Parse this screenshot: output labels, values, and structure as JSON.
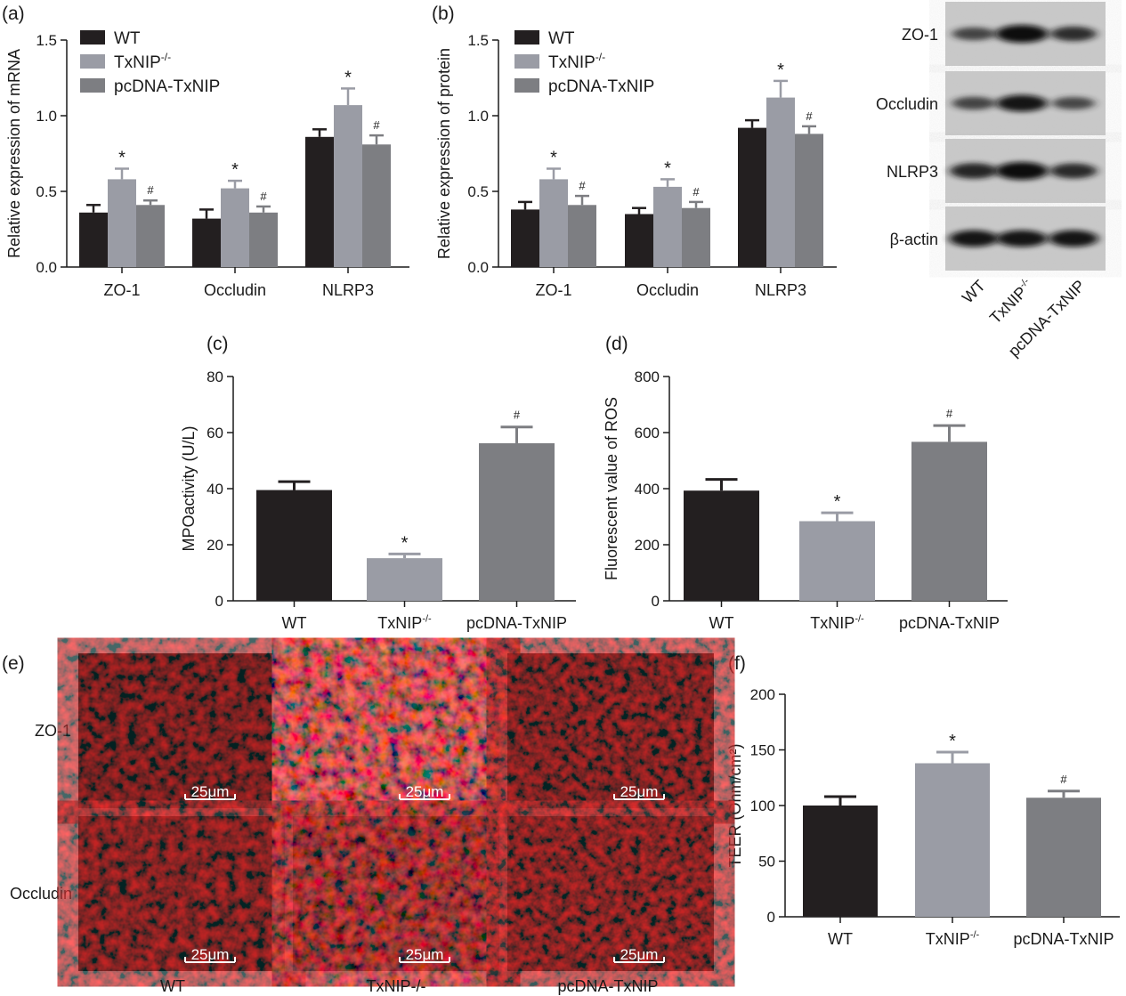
{
  "colors": {
    "wt": "#231f20",
    "ko": "#9a9ca5",
    "pc": "#7d7e82",
    "axis": "#1a1a1a",
    "blot_bg": "#c9c9c9",
    "fluor_bg": "#0e0202"
  },
  "chart_data": [
    {
      "panel": "(a)",
      "type": "bar",
      "ylabel": "Relative expression of mRNA",
      "ylim": [
        0,
        1.5
      ],
      "yticks": [
        "0.0",
        "0.5",
        "1.0",
        "1.5"
      ],
      "categories": [
        "ZO-1",
        "Occludin",
        "NLRP3"
      ],
      "legend": [
        {
          "label": "WT",
          "sup": ""
        },
        {
          "label": "TxNIP",
          "sup": "-/-"
        },
        {
          "label": "pcDNA-TxNIP",
          "sup": ""
        }
      ],
      "series": [
        {
          "name": "WT",
          "values": [
            0.36,
            0.32,
            0.86
          ],
          "errors": [
            0.05,
            0.06,
            0.05
          ],
          "marks": [
            "",
            "",
            ""
          ]
        },
        {
          "name": "TxNIP-/-",
          "values": [
            0.58,
            0.52,
            1.07
          ],
          "errors": [
            0.07,
            0.05,
            0.11
          ],
          "marks": [
            "*",
            "*",
            "*"
          ]
        },
        {
          "name": "pcDNA-TxNIP",
          "values": [
            0.41,
            0.36,
            0.81
          ],
          "errors": [
            0.03,
            0.04,
            0.06
          ],
          "marks": [
            "#",
            "#",
            "#"
          ]
        }
      ]
    },
    {
      "panel": "(b)",
      "type": "bar",
      "ylabel": "Relative expression of protein",
      "ylim": [
        0,
        1.5
      ],
      "yticks": [
        "0.0",
        "0.5",
        "1.0",
        "1.5"
      ],
      "categories": [
        "ZO-1",
        "Occludin",
        "NLRP3"
      ],
      "legend": [
        {
          "label": "WT",
          "sup": ""
        },
        {
          "label": "TxNIP",
          "sup": "-/-"
        },
        {
          "label": "pcDNA-TxNIP",
          "sup": ""
        }
      ],
      "series": [
        {
          "name": "WT",
          "values": [
            0.38,
            0.35,
            0.92
          ],
          "errors": [
            0.05,
            0.04,
            0.05
          ],
          "marks": [
            "",
            "",
            ""
          ]
        },
        {
          "name": "TxNIP-/-",
          "values": [
            0.58,
            0.53,
            1.12
          ],
          "errors": [
            0.07,
            0.05,
            0.11
          ],
          "marks": [
            "*",
            "*",
            "*"
          ]
        },
        {
          "name": "pcDNA-TxNIP",
          "values": [
            0.41,
            0.39,
            0.88
          ],
          "errors": [
            0.06,
            0.04,
            0.05
          ],
          "marks": [
            "#",
            "#",
            "#"
          ]
        }
      ]
    },
    {
      "panel": "(c)",
      "type": "bar",
      "ylabel": "MPOactivity (U/L)",
      "ylim": [
        0,
        80
      ],
      "yticks": [
        "0",
        "20",
        "40",
        "60",
        "80"
      ],
      "categories": [
        {
          "label": "WT",
          "sup": ""
        },
        {
          "label": "TxNIP",
          "sup": "-/-"
        },
        {
          "label": "pcDNA-TxNIP",
          "sup": ""
        }
      ],
      "values": [
        39.5,
        15.2,
        56.2
      ],
      "errors": [
        3.0,
        1.5,
        5.8
      ],
      "marks": [
        "",
        "*",
        "#"
      ]
    },
    {
      "panel": "(d)",
      "type": "bar",
      "ylabel": "Fluorescent value of ROS",
      "ylim": [
        0,
        800
      ],
      "yticks": [
        "0",
        "200",
        "400",
        "600",
        "800"
      ],
      "categories": [
        {
          "label": "WT",
          "sup": ""
        },
        {
          "label": "TxNIP",
          "sup": "-/-"
        },
        {
          "label": "pcDNA-TxNIP",
          "sup": ""
        }
      ],
      "values": [
        393,
        284,
        567
      ],
      "errors": [
        40,
        30,
        58
      ],
      "marks": [
        "",
        "*",
        "#"
      ]
    },
    {
      "panel": "(f)",
      "type": "bar",
      "ylabel": "TEER (Ohm/cm²)",
      "ylim": [
        0,
        200
      ],
      "yticks": [
        "0",
        "50",
        "100",
        "150",
        "200"
      ],
      "categories": [
        {
          "label": "WT",
          "sup": ""
        },
        {
          "label": "TxNIP",
          "sup": "-/-"
        },
        {
          "label": "pcDNA-TxNIP",
          "sup": ""
        }
      ],
      "values": [
        100,
        138,
        107
      ],
      "errors": [
        8,
        10,
        6
      ],
      "marks": [
        "",
        "*",
        "#"
      ]
    }
  ],
  "western_blot": {
    "rows": [
      "ZO-1",
      "Occludin",
      "NLRP3",
      "β-actin"
    ],
    "lanes": [
      {
        "label": "WT",
        "sup": ""
      },
      {
        "label": "TxNIP",
        "sup": "-/-"
      },
      {
        "label": "pcDNA-TxNIP",
        "sup": ""
      }
    ],
    "band_intensity": [
      [
        0.55,
        1.0,
        0.7
      ],
      [
        0.55,
        0.9,
        0.5
      ],
      [
        0.8,
        1.0,
        0.75
      ],
      [
        0.9,
        0.9,
        0.9
      ]
    ]
  },
  "fluorescence": {
    "panel": "(e)",
    "rows": [
      "ZO-1",
      "Occludin"
    ],
    "columns": [
      "WT",
      "TxNIP-/-",
      "pcDNA-TxNIP"
    ],
    "scale_bar": "25μm",
    "intensity": [
      [
        0.45,
        0.95,
        0.5
      ],
      [
        0.5,
        0.7,
        0.55
      ]
    ]
  }
}
